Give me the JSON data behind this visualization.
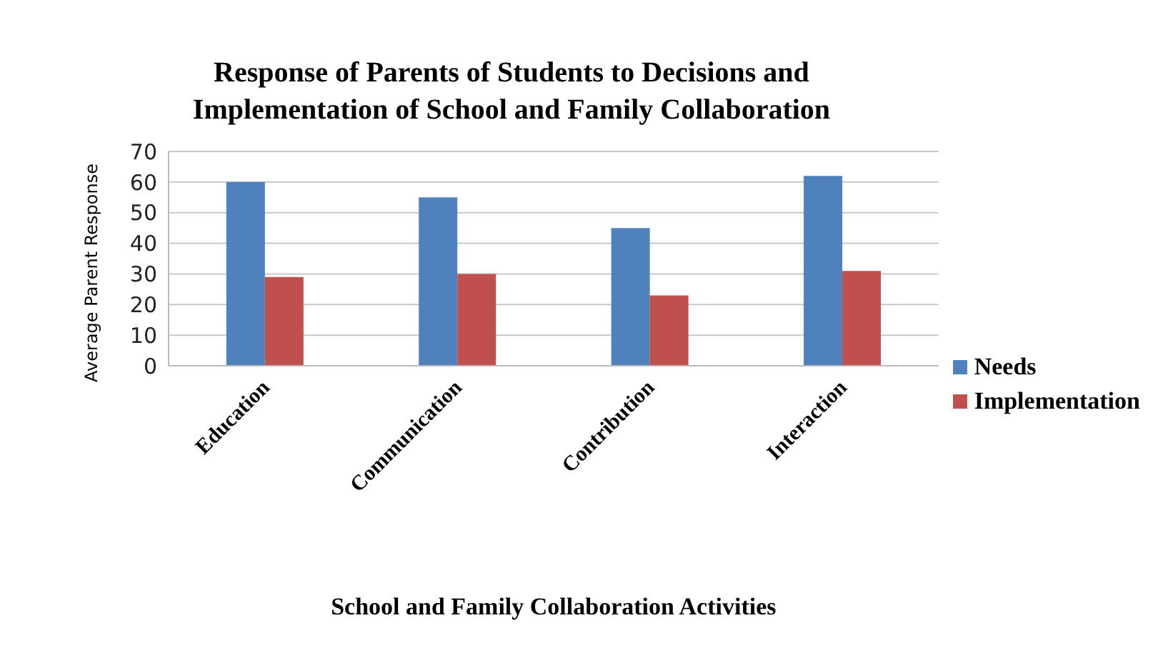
{
  "chart_data": {
    "type": "bar",
    "title": "Response of Parents of Students to Decisions and Implementation of School and Family Collaboration",
    "xlabel": "School and Family Collaboration Activities",
    "ylabel": "Average Parent Response",
    "categories": [
      "Education",
      "Communication",
      "Contribution",
      "Interaction"
    ],
    "series": [
      {
        "name": "Needs",
        "color": "#4f81bd",
        "values": [
          60,
          55,
          45,
          62
        ]
      },
      {
        "name": "Implementation",
        "color": "#c0504d",
        "values": [
          29,
          30,
          23,
          31
        ]
      }
    ],
    "ylim": [
      0,
      70
    ],
    "yticks": [
      0,
      10,
      20,
      30,
      40,
      50,
      60,
      70
    ],
    "grid": "y",
    "legend": "right"
  }
}
